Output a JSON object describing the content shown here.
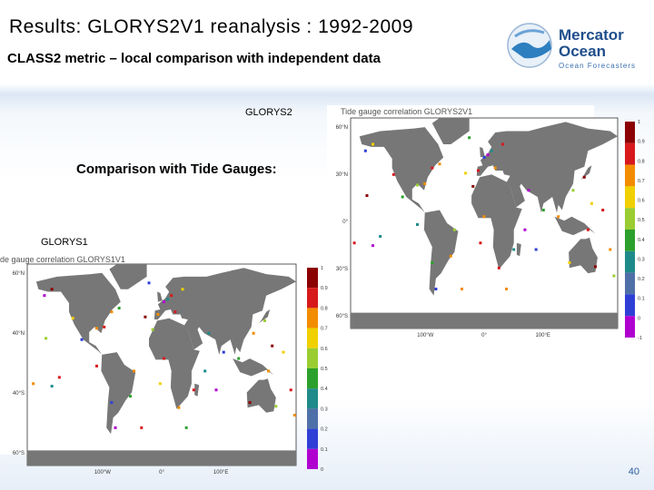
{
  "header": {
    "title": "Results: GLORYS2V1 reanalysis :  1992-2009",
    "subtitle": "CLASS2 metric – local comparison with independent data"
  },
  "logo": {
    "line1": "Mercator",
    "line2": "Ocean",
    "tagline": "Ocean Forecasters"
  },
  "heading": "Comparison with Tide Gauges:",
  "maps": [
    {
      "label": "GLORYS2",
      "title": "Tide gauge correlation GLORYS2V1",
      "lat_labels": [
        "60°N",
        "30°N",
        "0°",
        "30°S",
        "60°S"
      ],
      "lon_labels": [
        "100°W",
        "0°",
        "100°E"
      ],
      "colorbar_labels": [
        "1",
        "0.9",
        "0.8",
        "0.7",
        "0.6",
        "0.5",
        "0.4",
        "0.3",
        "0.2",
        "0.1",
        "0",
        "-1"
      ]
    },
    {
      "label": "GLORYS1",
      "title": "de gauge correlation GLORYS1V1",
      "lat_labels": [
        "60°N",
        "40°N",
        "40°S",
        "60°S"
      ],
      "lon_labels": [
        "100°W",
        "0°",
        "100°E"
      ],
      "colorbar_labels": [
        "1",
        "0.9",
        "0.8",
        "0.7",
        "0.6",
        "0.5",
        "0.4",
        "0.3",
        "0.2",
        "0.1",
        "0"
      ]
    }
  ],
  "page_number": "40"
}
